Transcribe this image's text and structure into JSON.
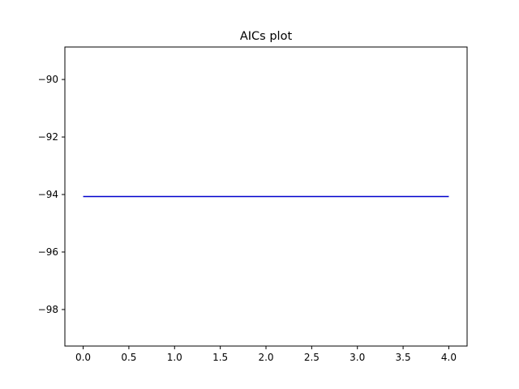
{
  "chart_data": {
    "type": "line",
    "title": "AICs plot",
    "xlabel": "",
    "ylabel": "",
    "x": [
      0,
      1,
      2,
      3,
      4
    ],
    "series": [
      {
        "values": [
          -94.07,
          -94.07,
          -94.07,
          -94.07,
          -94.07
        ],
        "color": "#0000cc"
      }
    ],
    "xlim": [
      -0.2,
      4.2
    ],
    "ylim": [
      -99.27,
      -88.87
    ],
    "xticks": [
      0.0,
      0.5,
      1.0,
      1.5,
      2.0,
      2.5,
      3.0,
      3.5,
      4.0
    ],
    "xtick_labels": [
      "0.0",
      "0.5",
      "1.0",
      "1.5",
      "2.0",
      "2.5",
      "3.0",
      "3.5",
      "4.0"
    ],
    "yticks": [
      -90,
      -92,
      -94,
      -96,
      -98
    ],
    "ytick_labels": [
      "−90",
      "−92",
      "−94",
      "−96",
      "−98"
    ],
    "grid": false,
    "legend": false
  }
}
